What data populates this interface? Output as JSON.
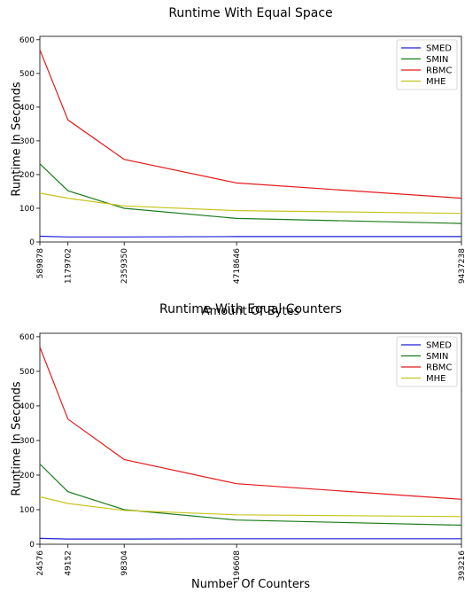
{
  "chart_data": [
    {
      "type": "line",
      "title": "Runtime With Equal Space",
      "xlabel": "Amount Of Bytes",
      "ylabel": "Runtime In Seconds",
      "x": [
        589878,
        1179702,
        2359350,
        4718646,
        9437238
      ],
      "x_tick_labels": [
        "589878",
        "1179702",
        "2359350",
        "4718646",
        "9437238"
      ],
      "ylim": [
        0,
        610
      ],
      "y_ticks": [
        0,
        100,
        200,
        300,
        400,
        500,
        600
      ],
      "legend_position": "top-right",
      "series": [
        {
          "name": "SMED",
          "color": "#1f1fd6",
          "values": [
            17,
            15,
            15,
            16,
            16
          ]
        },
        {
          "name": "SMIN",
          "color": "#1a7a1a",
          "values": [
            232,
            152,
            100,
            70,
            55
          ]
        },
        {
          "name": "RBMC",
          "color": "#e31a1a",
          "values": [
            570,
            362,
            245,
            175,
            130
          ]
        },
        {
          "name": "MHE",
          "color": "#c8c41c",
          "values": [
            145,
            130,
            107,
            93,
            85
          ]
        }
      ]
    },
    {
      "type": "line",
      "title": "Runtime With Equal Counters",
      "xlabel": "Number Of Counters",
      "ylabel": "Runtime In Seconds",
      "x": [
        24576,
        49152,
        98304,
        196608,
        393216
      ],
      "x_tick_labels": [
        "24576",
        "49152",
        "98304",
        "196608",
        "393216"
      ],
      "ylim": [
        0,
        610
      ],
      "y_ticks": [
        0,
        100,
        200,
        300,
        400,
        500,
        600
      ],
      "legend_position": "top-right",
      "series": [
        {
          "name": "SMED",
          "color": "#1f1fd6",
          "values": [
            17,
            15,
            15,
            16,
            16
          ]
        },
        {
          "name": "SMIN",
          "color": "#1a7a1a",
          "values": [
            232,
            152,
            100,
            70,
            55
          ]
        },
        {
          "name": "RBMC",
          "color": "#e31a1a",
          "values": [
            570,
            362,
            245,
            175,
            130
          ]
        },
        {
          "name": "MHE",
          "color": "#c8c41c",
          "values": [
            137,
            118,
            98,
            85,
            80
          ]
        }
      ]
    }
  ]
}
